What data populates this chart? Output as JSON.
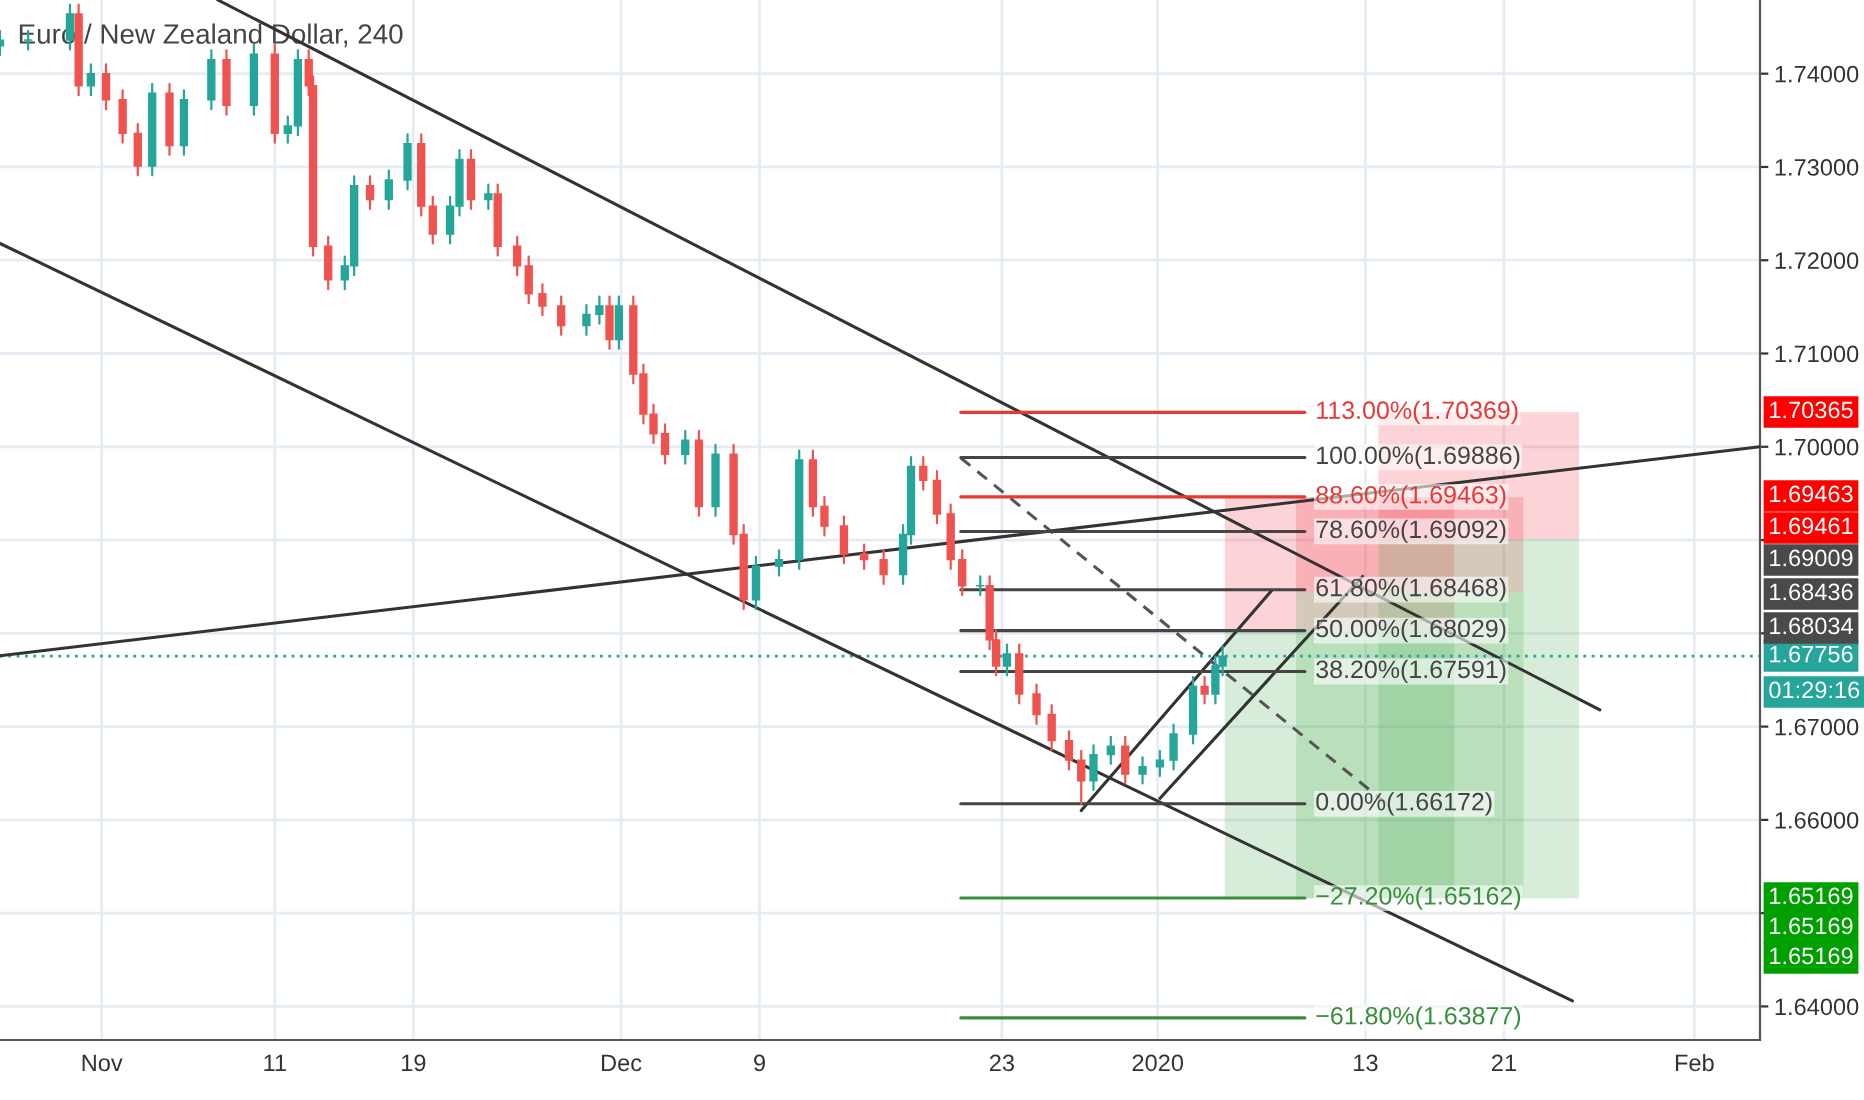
{
  "chart_data": {
    "type": "candlestick",
    "title": "Euro / New Zealand Dollar, 240",
    "colors": [
      "#26a69a",
      "#26a69a",
      "#26a69a",
      "#ef5350",
      "#26a69a",
      "#ef5350",
      "#ef5350",
      "#ef5350",
      "#26a69a",
      "#ef5350",
      "#26a69a",
      "#26a69a",
      "#ef5350",
      "#26a69a",
      "#ef5350",
      "#26a69a",
      "#26a69a",
      "#ef5350",
      "#ef5350",
      "#ef5350",
      "#26a69a",
      "#26a69a",
      "#ef5350",
      "#26a69a",
      "#26a69a",
      "#ef5350",
      "#ef5350",
      "#26a69a",
      "#26a69a",
      "#ef5350",
      "#26a69a",
      "#ef5350",
      "#ef5350",
      "#ef5350",
      "#ef5350",
      "#ef5350",
      "#26a69a",
      "#26a69a",
      "#ef5350",
      "#26a69a",
      "#ef5350",
      "#ef5350",
      "#ef5350",
      "#ef5350",
      "#26a69a",
      "#ef5350",
      "#26a69a",
      "#ef5350",
      "#ef5350",
      "#26a69a",
      "#26a69a",
      "#26a69a",
      "#ef5350",
      "#ef5350",
      "#ef5350",
      "#ef5350",
      "#ef5350",
      "#26a69a",
      "#26a69a",
      "#ef5350",
      "#ef5350",
      "#ef5350",
      "#ef5350",
      "#26a69a",
      "#ef5350",
      "#ef5350",
      "#26a69a",
      "#ef5350",
      "#ef5350",
      "#ef5350",
      "#ef5350",
      "#ef5350",
      "#26a69a",
      "#26a69a",
      "#ef5350",
      "#26a69a",
      "#26a69a",
      "#26a69a",
      "#26a69a",
      "#ef5350",
      "#26a69a",
      "#26a69a"
    ],
    "x": [
      "2019-10-26T03:00",
      "2019-10-27T18:00",
      "2019-10-30T04:00",
      "2019-10-30T16:00",
      "2019-10-31T09:00",
      "2019-11-01T06:00",
      "2019-11-02T05:00",
      "2019-11-03T02:00",
      "2019-11-03T22:00",
      "2019-11-04T22:00",
      "2019-11-05T18:00",
      "2019-11-07T08:00",
      "2019-11-08T05:00",
      "2019-11-09T19:00",
      "2019-11-11T00:00",
      "2019-11-11T18:00",
      "2019-11-12T08:00",
      "2019-11-12T23:00",
      "2019-11-13T05:00",
      "2019-11-14T02:00",
      "2019-11-15T01:00",
      "2019-11-15T14:00",
      "2019-11-16T12:00",
      "2019-11-17T14:00",
      "2019-11-18T16:00",
      "2019-11-19T11:00",
      "2019-11-20T03:00",
      "2019-11-21T03:00",
      "2019-11-21T16:00",
      "2019-11-22T08:00",
      "2019-11-23T08:00",
      "2019-11-23T21:00",
      "2019-11-25T00:00",
      "2019-11-25T16:00",
      "2019-11-26T11:00",
      "2019-11-27T13:00",
      "2019-11-29T00:00",
      "2019-11-29T18:00",
      "2019-11-30T08:00",
      "2019-11-30T21:00",
      "2019-12-01T17:00",
      "2019-12-02T07:00",
      "2019-12-02T21:00",
      "2019-12-03T13:00",
      "2019-12-04T17:00",
      "2019-12-05T12:00",
      "2019-12-06T11:00",
      "2019-12-07T12:00",
      "2019-12-08T02:00",
      "2019-12-08T19:00",
      "2019-12-10T03:00",
      "2019-12-11T07:00",
      "2019-12-12T02:00",
      "2019-12-12T18:00",
      "2019-12-13T21:00",
      "2019-12-15T01:00",
      "2019-12-16T04:00",
      "2019-12-17T07:00",
      "2019-12-17T18:00",
      "2019-12-18T11:00",
      "2019-12-19T06:00",
      "2019-12-20T01:00",
      "2019-12-20T17:00",
      "2019-12-21T18:00",
      "2019-12-22T07:00",
      "2019-12-22T16:00",
      "2019-12-23T07:00",
      "2019-12-24T00:00",
      "2019-12-25T00:00",
      "2019-12-25T21:00",
      "2019-12-26T21:00",
      "2019-12-27T14:00",
      "2019-12-28T07:00",
      "2019-12-29T07:00",
      "2019-12-30T03:00",
      "2019-12-31T03:00",
      "2020-01-01T03:00",
      "2020-01-01T22:00",
      "2020-01-03T01:00",
      "2020-01-03T17:00",
      "2020-01-04T08:00",
      "2020-01-04T18:00"
    ],
    "ohlc": [
      [
        1.743,
        1.7446,
        1.742,
        1.7436
      ],
      [
        1.7436,
        1.7446,
        1.7426,
        1.7436
      ],
      [
        1.7436,
        1.7474,
        1.7426,
        1.7464
      ],
      [
        1.7464,
        1.7474,
        1.7377,
        1.7387
      ],
      [
        1.7387,
        1.741,
        1.7377,
        1.74
      ],
      [
        1.74,
        1.741,
        1.7362,
        1.7372
      ],
      [
        1.7372,
        1.7382,
        1.7326,
        1.7336
      ],
      [
        1.7336,
        1.7346,
        1.7291,
        1.7301
      ],
      [
        1.7301,
        1.7389,
        1.7291,
        1.7379
      ],
      [
        1.7379,
        1.7389,
        1.7313,
        1.7323
      ],
      [
        1.7323,
        1.7382,
        1.7313,
        1.7372
      ],
      [
        1.7372,
        1.7425,
        1.7362,
        1.7415
      ],
      [
        1.7415,
        1.7425,
        1.7356,
        1.7366
      ],
      [
        1.7366,
        1.7431,
        1.7356,
        1.7421
      ],
      [
        1.7421,
        1.7431,
        1.7326,
        1.7336
      ],
      [
        1.7336,
        1.7354,
        1.7326,
        1.7344
      ],
      [
        1.7344,
        1.7425,
        1.7334,
        1.7415
      ],
      [
        1.7415,
        1.7425,
        1.7377,
        1.7387
      ],
      [
        1.7387,
        1.7397,
        1.7205,
        1.7215
      ],
      [
        1.7215,
        1.7225,
        1.7169,
        1.7179
      ],
      [
        1.7179,
        1.7204,
        1.7169,
        1.7194
      ],
      [
        1.7194,
        1.729,
        1.7184,
        1.728
      ],
      [
        1.728,
        1.729,
        1.7255,
        1.7265
      ],
      [
        1.7265,
        1.7296,
        1.7255,
        1.7286
      ],
      [
        1.7286,
        1.7335,
        1.7276,
        1.7325
      ],
      [
        1.7325,
        1.7335,
        1.7248,
        1.7258
      ],
      [
        1.7258,
        1.7268,
        1.7218,
        1.7228
      ],
      [
        1.7228,
        1.7268,
        1.7218,
        1.7258
      ],
      [
        1.7258,
        1.7318,
        1.7248,
        1.7308
      ],
      [
        1.7308,
        1.7318,
        1.7255,
        1.7265
      ],
      [
        1.7265,
        1.7281,
        1.7255,
        1.7271
      ],
      [
        1.7271,
        1.7281,
        1.7205,
        1.7215
      ],
      [
        1.7215,
        1.7225,
        1.7184,
        1.7194
      ],
      [
        1.7194,
        1.7204,
        1.7154,
        1.7164
      ],
      [
        1.7164,
        1.7174,
        1.7141,
        1.7151
      ],
      [
        1.7151,
        1.7161,
        1.712,
        1.713
      ],
      [
        1.713,
        1.7152,
        1.712,
        1.7142
      ],
      [
        1.7142,
        1.7161,
        1.7132,
        1.7151
      ],
      [
        1.7151,
        1.7161,
        1.7105,
        1.7115
      ],
      [
        1.7115,
        1.7161,
        1.7105,
        1.7151
      ],
      [
        1.7151,
        1.7161,
        1.7068,
        1.7078
      ],
      [
        1.7078,
        1.7088,
        1.7025,
        1.7035
      ],
      [
        1.7035,
        1.7045,
        1.7004,
        1.7014
      ],
      [
        1.7014,
        1.7024,
        1.6982,
        1.6992
      ],
      [
        1.6992,
        1.7017,
        1.6982,
        1.7007
      ],
      [
        1.7007,
        1.7017,
        1.6926,
        1.6936
      ],
      [
        1.6936,
        1.7002,
        1.6926,
        1.6992
      ],
      [
        1.6992,
        1.7002,
        1.6896,
        1.6906
      ],
      [
        1.6906,
        1.6916,
        1.6826,
        1.6836
      ],
      [
        1.6836,
        1.6882,
        1.6826,
        1.6872
      ],
      [
        1.6872,
        1.6889,
        1.6862,
        1.6879
      ],
      [
        1.6879,
        1.6996,
        1.6869,
        1.6986
      ],
      [
        1.6986,
        1.6996,
        1.6926,
        1.6936
      ],
      [
        1.6936,
        1.6946,
        1.6905,
        1.6915
      ],
      [
        1.6915,
        1.6925,
        1.6875,
        1.6885
      ],
      [
        1.6885,
        1.6895,
        1.6869,
        1.6879
      ],
      [
        1.6879,
        1.6889,
        1.6853,
        1.6863
      ],
      [
        1.6863,
        1.6916,
        1.6853,
        1.6906
      ],
      [
        1.6906,
        1.6989,
        1.6896,
        1.6979
      ],
      [
        1.6979,
        1.6989,
        1.6954,
        1.6964
      ],
      [
        1.6964,
        1.6974,
        1.6918,
        1.6928
      ],
      [
        1.6928,
        1.6938,
        1.6869,
        1.6879
      ],
      [
        1.6879,
        1.6889,
        1.6841,
        1.6851
      ],
      [
        1.6851,
        1.6861,
        1.6841,
        1.6851
      ],
      [
        1.6851,
        1.6861,
        1.6783,
        1.6793
      ],
      [
        1.6793,
        1.6803,
        1.6755,
        1.6765
      ],
      [
        1.6765,
        1.6788,
        1.6755,
        1.6778
      ],
      [
        1.6778,
        1.6788,
        1.6725,
        1.6735
      ],
      [
        1.6735,
        1.6745,
        1.6703,
        1.6713
      ],
      [
        1.6713,
        1.6723,
        1.6675,
        1.6685
      ],
      [
        1.6685,
        1.6695,
        1.6654,
        1.6664
      ],
      [
        1.6664,
        1.6674,
        1.6617,
        1.6642
      ],
      [
        1.6642,
        1.668,
        1.6632,
        1.667
      ],
      [
        1.667,
        1.6689,
        1.666,
        1.6679
      ],
      [
        1.6679,
        1.6689,
        1.6639,
        1.6649
      ],
      [
        1.6649,
        1.6667,
        1.6639,
        1.6657
      ],
      [
        1.6657,
        1.6674,
        1.6647,
        1.6664
      ],
      [
        1.6664,
        1.6702,
        1.6654,
        1.6692
      ],
      [
        1.6692,
        1.6753,
        1.6682,
        1.6743
      ],
      [
        1.6743,
        1.6753,
        1.6725,
        1.6735
      ],
      [
        1.6735,
        1.6775,
        1.6725,
        1.6765
      ],
      [
        1.6765,
        1.6786,
        1.6755,
        1.67756
      ]
    ],
    "xlim": [
      "2019-10-26T03:00",
      "2020-02-04T19:00"
    ],
    "xticks": [
      {
        "value": "2019-11-01",
        "label": "Nov"
      },
      {
        "value": "2019-11-11",
        "label": "11"
      },
      {
        "value": "2019-11-19",
        "label": "19"
      },
      {
        "value": "2019-12-01",
        "label": "Dec"
      },
      {
        "value": "2019-12-09",
        "label": "9"
      },
      {
        "value": "2019-12-23",
        "label": "23"
      },
      {
        "value": "2020-01-01",
        "label": "2020"
      },
      {
        "value": "2020-01-13",
        "label": "13"
      },
      {
        "value": "2020-01-21",
        "label": "21"
      },
      {
        "value": "2020-02-01",
        "label": "Feb"
      }
    ],
    "ylim": [
      1.6364,
      1.7479
    ],
    "yticks": [
      {
        "value": 1.64,
        "label": "1.64000"
      },
      {
        "value": 1.65,
        "label": null
      },
      {
        "value": 1.66,
        "label": "1.66000"
      },
      {
        "value": 1.67,
        "label": "1.67000"
      },
      {
        "value": 1.68,
        "label": null
      },
      {
        "value": 1.69,
        "label": null
      },
      {
        "value": 1.7,
        "label": "1.70000"
      },
      {
        "value": 1.71,
        "label": "1.71000"
      },
      {
        "value": 1.72,
        "label": "1.72000"
      },
      {
        "value": 1.73,
        "label": "1.73000"
      },
      {
        "value": 1.74,
        "label": "1.74000"
      }
    ],
    "grid": true,
    "series": [
      {
        "type": "area",
        "color": "#f23645",
        "x": [
          "2020-01-04T21:00",
          "2020-01-18T03:00"
        ],
        "values": [
          null,
          null
        ],
        "upper": [
          1.6946,
          1.6946
        ],
        "lower": [
          1.6803,
          1.6803
        ]
      },
      {
        "type": "area",
        "color": "#f23645",
        "x": [
          "2020-01-09T00:00",
          "2020-01-22T03:00"
        ],
        "values": [
          null,
          null
        ],
        "upper": [
          1.6946,
          1.6946
        ],
        "lower": [
          1.6844,
          1.6844
        ]
      },
      {
        "type": "area",
        "color": "#f23645",
        "x": [
          "2020-01-13T18:00",
          "2020-01-25T08:00"
        ],
        "values": [
          null,
          null
        ],
        "upper": [
          1.7037,
          1.7037
        ],
        "lower": [
          1.6901,
          1.6901
        ]
      },
      {
        "type": "area",
        "color": "#4caf50",
        "x": [
          "2020-01-04T21:00",
          "2020-01-18T03:00"
        ],
        "values": [
          null,
          null
        ],
        "upper": [
          1.6803,
          1.6803
        ],
        "lower": [
          1.6516,
          1.6516
        ]
      },
      {
        "type": "area",
        "color": "#4caf50",
        "x": [
          "2020-01-09T00:00",
          "2020-01-22T03:00"
        ],
        "values": [
          null,
          null
        ],
        "upper": [
          1.6844,
          1.6844
        ],
        "lower": [
          1.6516,
          1.6516
        ]
      },
      {
        "type": "area",
        "color": "#4caf50",
        "x": [
          "2020-01-13T18:00",
          "2020-01-25T08:00"
        ],
        "values": [
          null,
          null
        ],
        "upper": [
          1.6901,
          1.6901
        ],
        "lower": [
          1.6516,
          1.6516
        ]
      },
      {
        "type": "line",
        "color": "#333333",
        "x": [
          "2019-11-07T17:00",
          "2020-01-26T13:00"
        ],
        "values": [
          1.7479,
          1.6718
        ]
      },
      {
        "type": "line",
        "color": "#333333",
        "x": [
          "2019-10-26T03:00",
          "2020-01-24T23:00"
        ],
        "values": [
          1.7218,
          1.6406
        ]
      },
      {
        "type": "line",
        "color": "#333333",
        "x": [
          "2019-10-26T03:00",
          "2020-02-04T19:00"
        ],
        "values": [
          1.6776,
          1.7
        ]
      },
      {
        "type": "line",
        "color": "#333333",
        "x": [
          "2019-12-27T14:00",
          "2020-01-07T14:00"
        ],
        "values": [
          1.661,
          1.6846
        ]
      },
      {
        "type": "line",
        "color": "#333333",
        "x": [
          "2020-01-01T03:00",
          "2020-01-12T20:00"
        ],
        "values": [
          1.6623,
          1.6861
        ]
      },
      {
        "type": "line",
        "color": "#555555",
        "line_style": "dashed",
        "x": [
          "2019-12-20T15:00",
          "2020-01-14T09:00"
        ],
        "values": [
          1.6988,
          1.6615
        ]
      },
      {
        "type": "line",
        "name": "113.00%(1.70369)",
        "color": "#e53935",
        "x": [
          "2019-12-20T15:00",
          "2020-01-09T12:00"
        ],
        "values": [
          1.70369,
          1.70369
        ]
      },
      {
        "type": "line",
        "name": "100.00%(1.69886)",
        "color": "#444444",
        "x": [
          "2019-12-20T15:00",
          "2020-01-09T12:00"
        ],
        "values": [
          1.69886,
          1.69886
        ]
      },
      {
        "type": "line",
        "name": "88.60%(1.69463)",
        "color": "#e53935",
        "x": [
          "2019-12-20T15:00",
          "2020-01-09T12:00"
        ],
        "values": [
          1.69463,
          1.69463
        ]
      },
      {
        "type": "line",
        "name": "78.60%(1.69092)",
        "color": "#444444",
        "x": [
          "2019-12-20T15:00",
          "2020-01-09T12:00"
        ],
        "values": [
          1.69092,
          1.69092
        ]
      },
      {
        "type": "line",
        "name": "61.80%(1.68468)",
        "color": "#444444",
        "x": [
          "2019-12-20T15:00",
          "2020-01-09T12:00"
        ],
        "values": [
          1.68468,
          1.68468
        ]
      },
      {
        "type": "line",
        "name": "50.00%(1.68029)",
        "color": "#444444",
        "x": [
          "2019-12-20T15:00",
          "2020-01-09T12:00"
        ],
        "values": [
          1.68029,
          1.68029
        ]
      },
      {
        "type": "line",
        "name": "38.20%(1.67591)",
        "color": "#444444",
        "x": [
          "2019-12-20T15:00",
          "2020-01-09T12:00"
        ],
        "values": [
          1.67591,
          1.67591
        ]
      },
      {
        "type": "line",
        "name": "0.00%(1.66172)",
        "color": "#444444",
        "x": [
          "2019-12-20T15:00",
          "2020-01-09T12:00"
        ],
        "values": [
          1.66172,
          1.66172
        ]
      },
      {
        "type": "line",
        "name": "−27.20%(1.65162)",
        "color": "#388e3c",
        "x": [
          "2019-12-20T15:00",
          "2020-01-09T12:00"
        ],
        "values": [
          1.65162,
          1.65162
        ]
      },
      {
        "type": "line",
        "name": "−61.80%(1.63877)",
        "color": "#388e3c",
        "x": [
          "2019-12-20T15:00",
          "2020-01-09T12:00"
        ],
        "values": [
          1.63877,
          1.63877
        ]
      }
    ],
    "ref_lines": [
      {
        "axis": "y",
        "value": 1.67756,
        "label": "1.67756",
        "color": "#26a69a",
        "line_style": "dotted"
      }
    ],
    "annotations": [
      "1.70365",
      "1.69463",
      "1.69461",
      "1.69009",
      "1.68436",
      "1.68034",
      "01:29:16",
      "1.65169",
      "1.65169",
      "1.65169"
    ]
  }
}
